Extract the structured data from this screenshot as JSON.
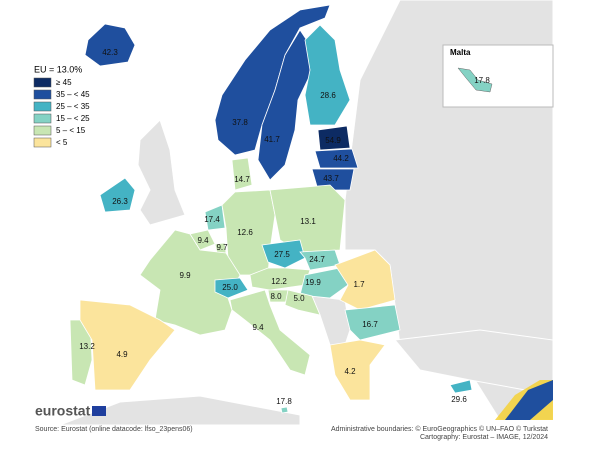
{
  "legend": {
    "title": "EU = 13.0%",
    "items": [
      {
        "label": "≥ 45",
        "color": "#0d2b63"
      },
      {
        "label": "35 – < 45",
        "color": "#1f4f9e"
      },
      {
        "label": "25 – < 35",
        "color": "#44b3c4"
      },
      {
        "label": "15 – < 25",
        "color": "#84d2c4"
      },
      {
        "label": "5 – < 15",
        "color": "#c8e6b3"
      },
      {
        "label": "< 5",
        "color": "#fbe49c"
      }
    ]
  },
  "inset": {
    "title": "Malta",
    "label": "17.8",
    "color": "#84d2c4"
  },
  "regions": [
    {
      "label": "42.3",
      "color": "#1f4f9e"
    },
    {
      "label": "37.8",
      "color": "#1f4f9e"
    },
    {
      "label": "41.7",
      "color": "#1f4f9e"
    },
    {
      "label": "28.6",
      "color": "#44b3c4"
    },
    {
      "label": "54.9",
      "color": "#0d2b63"
    },
    {
      "label": "44.2",
      "color": "#1f4f9e"
    },
    {
      "label": "43.7",
      "color": "#1f4f9e"
    },
    {
      "label": "26.3",
      "color": "#44b3c4"
    },
    {
      "label": "14.7",
      "color": "#c8e6b3"
    },
    {
      "label": "17.4",
      "color": "#84d2c4"
    },
    {
      "label": "9.4",
      "color": "#c8e6b3"
    },
    {
      "label": "9.7",
      "color": "#c8e6b3"
    },
    {
      "label": "12.6",
      "color": "#c8e6b3"
    },
    {
      "label": "13.1",
      "color": "#c8e6b3"
    },
    {
      "label": "27.5",
      "color": "#44b3c4"
    },
    {
      "label": "24.7",
      "color": "#84d2c4"
    },
    {
      "label": "9.9",
      "color": "#c8e6b3"
    },
    {
      "label": "25.0",
      "color": "#44b3c4"
    },
    {
      "label": "12.2",
      "color": "#c8e6b3"
    },
    {
      "label": "19.9",
      "color": "#84d2c4"
    },
    {
      "label": "1.7",
      "color": "#fbe49c"
    },
    {
      "label": "8.0",
      "color": "#c8e6b3"
    },
    {
      "label": "5.0",
      "color": "#c8e6b3"
    },
    {
      "label": "9.4",
      "color": "#c8e6b3"
    },
    {
      "label": "16.7",
      "color": "#84d2c4"
    },
    {
      "label": "13.2",
      "color": "#c8e6b3"
    },
    {
      "label": "4.9",
      "color": "#fbe49c"
    },
    {
      "label": "4.2",
      "color": "#fbe49c"
    },
    {
      "label": "17.8",
      "color": "#84d2c4"
    },
    {
      "label": "29.6",
      "color": "#44b3c4"
    }
  ],
  "footer": {
    "brand": "eurostat",
    "source": "Source: Eurostat (online datacode: lfso_23pens06)",
    "boundaries": "Administrative boundaries: © EuroGeographics © UN–FAO © Turkstat",
    "cartography": "Cartography: Eurostat – IMAGE, 12/2024"
  }
}
